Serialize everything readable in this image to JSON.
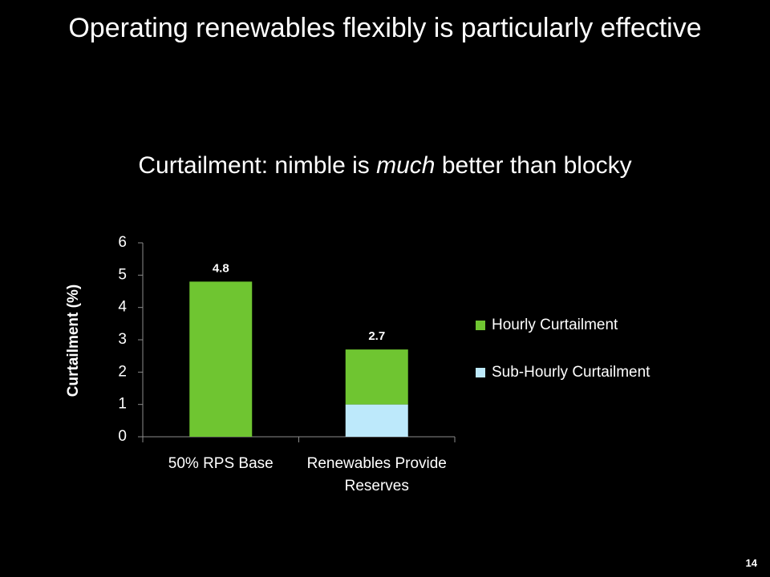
{
  "title": "Operating renewables flexibly is particularly effective",
  "page_number": 14,
  "chart_data": {
    "type": "stacked_bar",
    "title_parts": [
      "Curtailment: nimble is ",
      "much",
      " better than blocky"
    ],
    "y_label": "Curtailment (%)",
    "categories": [
      "50% RPS Base",
      "Renewables Provide Reserves"
    ],
    "series": [
      {
        "name": "Hourly Curtailment",
        "color": "#6fc531",
        "values": [
          4.8,
          1.7
        ]
      },
      {
        "name": "Sub-Hourly Curtailment",
        "color": "#bde9fb",
        "values": [
          0,
          1.0
        ]
      }
    ],
    "totals": [
      4.8,
      2.7
    ],
    "ylim": [
      0,
      6
    ],
    "yticks": [
      0,
      1,
      2,
      3,
      4,
      5,
      6
    ],
    "legend": "right"
  }
}
